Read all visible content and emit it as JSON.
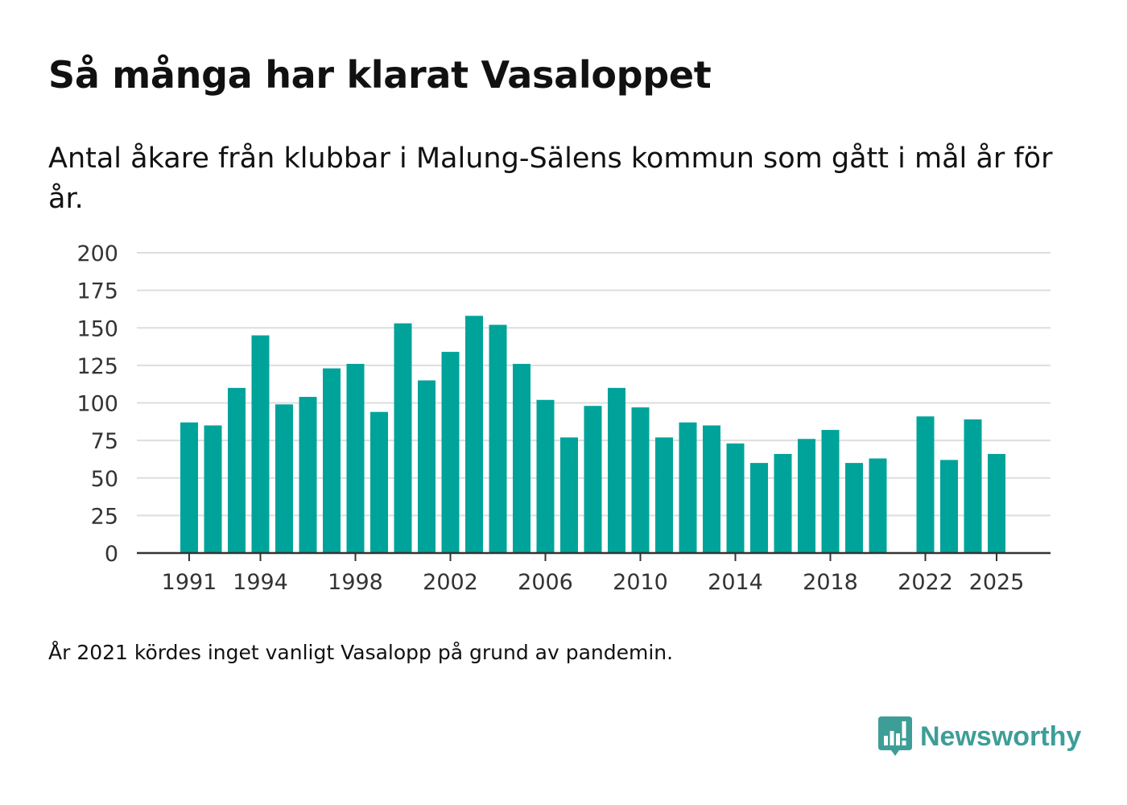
{
  "header": {
    "title": "Så många har klarat Vasaloppet",
    "subtitle": "Antal åkare från klubbar i Malung-Sälens kommun som gått i mål år för år."
  },
  "footnote": "År 2021 kördes inget vanligt Vasalopp på grund av pandemin.",
  "brand": {
    "name": "Newsworthy",
    "color": "#3d9e98",
    "icon": "chat-bar-chart-icon"
  },
  "colors": {
    "bar": "#00a39a",
    "grid": "#dddddd",
    "axis": "#333333",
    "tick_text": "#333333"
  },
  "chart_data": {
    "type": "bar",
    "title": "Så många har klarat Vasaloppet",
    "xlabel": "",
    "ylabel": "",
    "ylim": [
      0,
      200
    ],
    "yticks": [
      0,
      25,
      50,
      75,
      100,
      125,
      150,
      175,
      200
    ],
    "xticks": [
      1991,
      1994,
      1998,
      2002,
      2006,
      2010,
      2014,
      2018,
      2022,
      2025
    ],
    "grid": true,
    "categories": [
      1991,
      1992,
      1993,
      1994,
      1995,
      1996,
      1997,
      1998,
      1999,
      2000,
      2001,
      2002,
      2003,
      2004,
      2005,
      2006,
      2007,
      2008,
      2009,
      2010,
      2011,
      2012,
      2013,
      2014,
      2015,
      2016,
      2017,
      2018,
      2019,
      2020,
      2021,
      2022,
      2023,
      2024,
      2025
    ],
    "values": [
      87,
      85,
      110,
      145,
      99,
      104,
      123,
      126,
      94,
      153,
      115,
      134,
      158,
      152,
      126,
      102,
      77,
      98,
      110,
      97,
      77,
      87,
      85,
      73,
      60,
      66,
      76,
      82,
      60,
      63,
      null,
      91,
      62,
      89,
      66
    ]
  }
}
